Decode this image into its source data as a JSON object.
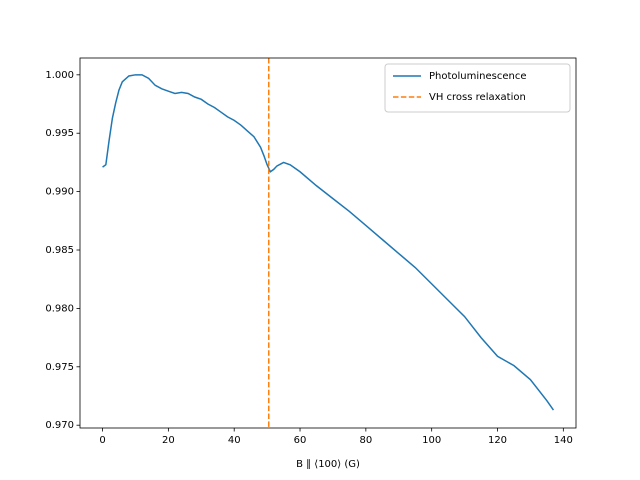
{
  "chart_data": {
    "type": "line",
    "xlabel": "B ∥ ⟨100⟩ (G)",
    "x": [
      0,
      1,
      2,
      3,
      4,
      5,
      6,
      8,
      10,
      12,
      14,
      16,
      18,
      20,
      22,
      24,
      26,
      28,
      30,
      32,
      34,
      36,
      38,
      40,
      42,
      44,
      46,
      48,
      49,
      50,
      51,
      52,
      53,
      55,
      57,
      60,
      65,
      70,
      75,
      80,
      85,
      90,
      95,
      100,
      105,
      110,
      115,
      120,
      125,
      130,
      135,
      137
    ],
    "series": [
      {
        "name": "Photoluminescence",
        "color": "#1f77b4",
        "values": [
          0.9921,
          0.9923,
          0.9944,
          0.9963,
          0.9976,
          0.9987,
          0.9994,
          0.9999,
          1.0,
          1.0,
          0.9997,
          0.9991,
          0.9988,
          0.9986,
          0.9984,
          0.9985,
          0.9984,
          0.9981,
          0.9979,
          0.9975,
          0.9972,
          0.9968,
          0.9964,
          0.9961,
          0.9957,
          0.9952,
          0.9947,
          0.9938,
          0.9931,
          0.9923,
          0.9917,
          0.9919,
          0.9922,
          0.9925,
          0.9923,
          0.9917,
          0.9905,
          0.9894,
          0.9883,
          0.9871,
          0.9859,
          0.9847,
          0.9835,
          0.9821,
          0.9807,
          0.9793,
          0.9775,
          0.9759,
          0.9751,
          0.9739,
          0.9721,
          0.9713
        ]
      }
    ],
    "vlines": [
      {
        "name": "VH cross relaxation",
        "color": "#ff7f0e",
        "x": 50.5
      }
    ],
    "xlim": [
      -6.85,
      143.85
    ],
    "ylim": [
      0.96976,
      1.00144
    ],
    "xticks": [
      0,
      20,
      40,
      60,
      80,
      100,
      120,
      140
    ],
    "yticks": [
      {
        "value": 0.97,
        "label": "0.970"
      },
      0.975,
      {
        "value": 0.98,
        "label": "0.980"
      },
      0.985,
      {
        "value": 0.99,
        "label": "0.990"
      },
      0.995,
      {
        "value": 1.0,
        "label": "1.000"
      }
    ],
    "legend": "upper right"
  }
}
